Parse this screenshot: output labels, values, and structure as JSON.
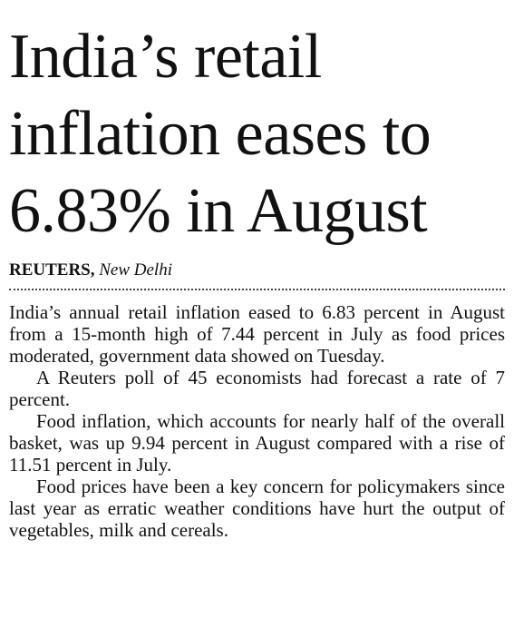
{
  "headline": {
    "lines": [
      "India’s retail",
      "inflation eases to",
      "6.83% in August"
    ]
  },
  "byline": {
    "agency": "REUTERS,",
    "location": "New Delhi"
  },
  "paragraphs": [
    "India’s annual retail inflation eased to 6.83 percent in August from a 15-month high of 7.44 percent in July as food prices moderated, government data showed on Tuesday.",
    "A Reuters poll of 45 economists had forecast a rate of 7 percent.",
    "Food inflation, which accounts for nearly half of the overall basket, was up 9.94 percent in August compared with a rise of 11.51 percent in July.",
    "Food prices have been a key concern for policymakers since last year as erratic weather conditions have hurt the output of vegetables, milk and cereals."
  ]
}
